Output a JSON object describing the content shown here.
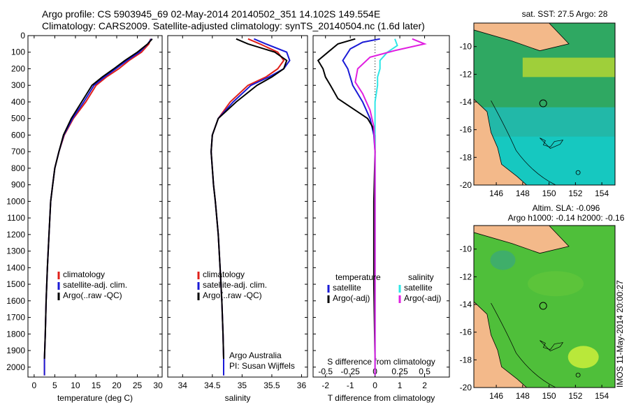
{
  "title_line1": "Argo profile: CS 5903945_69 02-May-2014 20140502_351 14.102S 149.554E",
  "title_line2": "Climatology: CARS2009. Satellite-adjusted climatology: synTS_20140504.nc (1.6d later)",
  "timestamp": "IMOS 11-May-2014 20:00:27",
  "colors": {
    "clim": "#e0201a",
    "sat": "#1a1ad6",
    "argo": "#000000",
    "sat_sal": "#2ee6e6",
    "argo_sal": "#e01ee0",
    "land": "#f3b98a",
    "map_sst": "#22b8a8",
    "map_sla": "#4fbf3a"
  },
  "chart_data": [
    {
      "type": "line",
      "name": "temperature-profile",
      "xlabel": "temperature (deg C)",
      "xlim": [
        -1.5,
        31
      ],
      "xticks": [
        0,
        5,
        10,
        15,
        20,
        25,
        30
      ],
      "ylim": [
        2060,
        0
      ],
      "yticks": [
        0,
        100,
        200,
        300,
        400,
        500,
        600,
        700,
        800,
        900,
        1000,
        1100,
        1200,
        1300,
        1400,
        1500,
        1600,
        1700,
        1800,
        1900,
        2000
      ],
      "legend": [
        "climatology",
        "satellite-adj. clim.",
        "Argo(..raw -QC)"
      ],
      "series": [
        {
          "name": "climatology",
          "color": "clim",
          "points": [
            [
              28.2,
              20
            ],
            [
              27.8,
              50
            ],
            [
              26,
              100
            ],
            [
              23,
              150
            ],
            [
              20.5,
              200
            ],
            [
              17.5,
              250
            ],
            [
              15,
              300
            ],
            [
              12.5,
              400
            ],
            [
              9.5,
              500
            ],
            [
              7.3,
              600
            ],
            [
              6,
              700
            ],
            [
              5,
              800
            ],
            [
              4.5,
              900
            ],
            [
              4,
              1000
            ],
            [
              3.6,
              1200
            ],
            [
              3.2,
              1400
            ],
            [
              2.9,
              1600
            ],
            [
              2.7,
              1800
            ],
            [
              2.5,
              1950
            ],
            [
              2.5,
              2050
            ]
          ]
        },
        {
          "name": "satellite-adj. clim.",
          "color": "sat",
          "points": [
            [
              28.4,
              20
            ],
            [
              27.5,
              50
            ],
            [
              25.5,
              100
            ],
            [
              22.5,
              150
            ],
            [
              19.8,
              200
            ],
            [
              17,
              250
            ],
            [
              14.5,
              300
            ],
            [
              12,
              400
            ],
            [
              9.3,
              500
            ],
            [
              7.2,
              600
            ],
            [
              6,
              700
            ],
            [
              5,
              800
            ],
            [
              4.5,
              900
            ],
            [
              4,
              1000
            ],
            [
              3.6,
              1200
            ],
            [
              3.2,
              1400
            ],
            [
              2.9,
              1600
            ],
            [
              2.7,
              1800
            ],
            [
              2.5,
              1950
            ],
            [
              2.5,
              2050
            ]
          ]
        },
        {
          "name": "Argo",
          "color": "argo",
          "points": [
            [
              28.6,
              20
            ],
            [
              27.5,
              50
            ],
            [
              25,
              100
            ],
            [
              22,
              150
            ],
            [
              19.3,
              200
            ],
            [
              16.5,
              250
            ],
            [
              14,
              300
            ],
            [
              11.5,
              400
            ],
            [
              9,
              500
            ],
            [
              7.1,
              600
            ],
            [
              6,
              700
            ],
            [
              5,
              800
            ],
            [
              4.5,
              900
            ],
            [
              4,
              1000
            ],
            [
              3.6,
              1200
            ],
            [
              3.2,
              1400
            ],
            [
              2.9,
              1600
            ],
            [
              2.7,
              1800
            ],
            [
              2.5,
              1950
            ]
          ]
        }
      ]
    },
    {
      "type": "line",
      "name": "salinity-profile",
      "xlabel": "salinity",
      "xlim": [
        33.75,
        36.1
      ],
      "xticks": [
        34,
        34.5,
        35,
        35.5,
        36
      ],
      "ylim": [
        2060,
        0
      ],
      "legend": [
        "climatology",
        "satellite-adj. clim.",
        "Argo(..raw -QC)"
      ],
      "annotation": [
        "Argo Australia",
        "PI: Susan Wijffels"
      ],
      "series": [
        {
          "name": "climatology",
          "color": "clim",
          "points": [
            [
              35.1,
              20
            ],
            [
              35.3,
              50
            ],
            [
              35.6,
              100
            ],
            [
              35.7,
              150
            ],
            [
              35.6,
              200
            ],
            [
              35.4,
              250
            ],
            [
              35.1,
              300
            ],
            [
              34.8,
              400
            ],
            [
              34.6,
              500
            ],
            [
              34.5,
              600
            ],
            [
              34.48,
              700
            ],
            [
              34.5,
              800
            ],
            [
              34.52,
              900
            ],
            [
              34.55,
              1000
            ],
            [
              34.6,
              1200
            ],
            [
              34.63,
              1400
            ],
            [
              34.66,
              1600
            ],
            [
              34.68,
              1800
            ],
            [
              34.69,
              1950
            ],
            [
              34.69,
              2050
            ]
          ]
        },
        {
          "name": "satellite-adj. clim.",
          "color": "sat",
          "points": [
            [
              35.2,
              20
            ],
            [
              35.4,
              50
            ],
            [
              35.75,
              100
            ],
            [
              35.8,
              150
            ],
            [
              35.7,
              200
            ],
            [
              35.45,
              250
            ],
            [
              35.15,
              300
            ],
            [
              34.85,
              400
            ],
            [
              34.6,
              500
            ],
            [
              34.5,
              600
            ],
            [
              34.48,
              700
            ],
            [
              34.5,
              800
            ],
            [
              34.52,
              900
            ],
            [
              34.55,
              1000
            ],
            [
              34.6,
              1200
            ],
            [
              34.63,
              1400
            ],
            [
              34.66,
              1600
            ],
            [
              34.68,
              1800
            ],
            [
              34.69,
              1950
            ],
            [
              34.69,
              2050
            ]
          ]
        },
        {
          "name": "Argo",
          "color": "argo",
          "points": [
            [
              34.9,
              20
            ],
            [
              35.1,
              50
            ],
            [
              35.55,
              100
            ],
            [
              35.75,
              150
            ],
            [
              35.7,
              200
            ],
            [
              35.5,
              250
            ],
            [
              35.25,
              300
            ],
            [
              34.9,
              400
            ],
            [
              34.6,
              500
            ],
            [
              34.5,
              600
            ],
            [
              34.48,
              700
            ],
            [
              34.5,
              800
            ],
            [
              34.52,
              900
            ],
            [
              34.55,
              1000
            ],
            [
              34.6,
              1200
            ],
            [
              34.63,
              1400
            ],
            [
              34.66,
              1600
            ],
            [
              34.68,
              1800
            ],
            [
              34.69,
              1950
            ]
          ]
        }
      ]
    },
    {
      "type": "line",
      "name": "difference-profile",
      "xlabel": "T difference from climatology",
      "xlabel_top": "S difference from climatology",
      "xlim": [
        -2.5,
        3
      ],
      "xticks": [
        -2,
        -1,
        0,
        1,
        2
      ],
      "xticks_top": [
        {
          "v": -2,
          "label": "-0.5"
        },
        {
          "v": -1,
          "label": "-0.25"
        },
        {
          "v": 0,
          "label": "0"
        },
        {
          "v": 1,
          "label": "0.25"
        },
        {
          "v": 2,
          "label": "0.5"
        }
      ],
      "ylim": [
        2060,
        0
      ],
      "legend_t": [
        "temperature",
        "satellite",
        "Argo(-adj)"
      ],
      "legend_s": [
        "salinity",
        "satellite",
        "Argo(-adj)"
      ],
      "series": [
        {
          "name": "temperature satellite",
          "color": "sat",
          "points": [
            [
              0.2,
              20
            ],
            [
              -0.5,
              40
            ],
            [
              -1,
              80
            ],
            [
              -1.3,
              150
            ],
            [
              -1.1,
              200
            ],
            [
              -0.9,
              300
            ],
            [
              -0.5,
              400
            ],
            [
              -0.2,
              500
            ],
            [
              -0.05,
              600
            ],
            [
              0,
              700
            ],
            [
              0,
              1000
            ],
            [
              0,
              2050
            ]
          ]
        },
        {
          "name": "temperature Argo",
          "color": "argo",
          "points": [
            [
              -0.8,
              20
            ],
            [
              -1.5,
              50
            ],
            [
              -1.9,
              100
            ],
            [
              -2.3,
              150
            ],
            [
              -2.1,
              200
            ],
            [
              -2,
              250
            ],
            [
              -1.8,
              300
            ],
            [
              -1.5,
              380
            ],
            [
              -0.8,
              450
            ],
            [
              -0.3,
              500
            ],
            [
              -0.1,
              550
            ],
            [
              0,
              600
            ],
            [
              0,
              700
            ],
            [
              -0.05,
              1000
            ],
            [
              -0.05,
              1500
            ],
            [
              0,
              1950
            ]
          ]
        },
        {
          "name": "salinity satellite",
          "color": "sat_sal",
          "points": [
            [
              0.8,
              20
            ],
            [
              0.9,
              60
            ],
            [
              0.5,
              100
            ],
            [
              0.2,
              150
            ],
            [
              0.2,
              200
            ],
            [
              0.1,
              250
            ],
            [
              0.1,
              300
            ],
            [
              0,
              400
            ],
            [
              0,
              500
            ],
            [
              0,
              2050
            ]
          ]
        },
        {
          "name": "salinity Argo",
          "color": "argo_sal",
          "points": [
            [
              1.5,
              20
            ],
            [
              2,
              50
            ],
            [
              0.8,
              90
            ],
            [
              -0.2,
              130
            ],
            [
              -0.7,
              200
            ],
            [
              -0.8,
              280
            ],
            [
              -0.5,
              350
            ],
            [
              -0.2,
              450
            ],
            [
              -0.05,
              550
            ],
            [
              0,
              700
            ],
            [
              0,
              2050
            ]
          ]
        }
      ]
    },
    {
      "type": "heatmap",
      "name": "sst-map",
      "title": "sat. SST: 27.5  Argo: 28",
      "xlim": [
        144.3,
        155
      ],
      "ylim": [
        -20,
        -8.3
      ],
      "xticks": [
        146,
        148,
        150,
        152,
        154
      ],
      "yticks": [
        -10,
        -12,
        -14,
        -16,
        -18,
        -20
      ]
    },
    {
      "type": "heatmap",
      "name": "sla-map",
      "title": "Altim. SLA: -0.096",
      "subtitle": "Argo h1000: -0.14  h2000: -0.16",
      "xlim": [
        144.3,
        155
      ],
      "ylim": [
        -20,
        -8.3
      ],
      "xticks": [
        146,
        148,
        150,
        152,
        154
      ],
      "yticks": [
        -10,
        -12,
        -14,
        -16,
        -18,
        -20
      ]
    }
  ]
}
